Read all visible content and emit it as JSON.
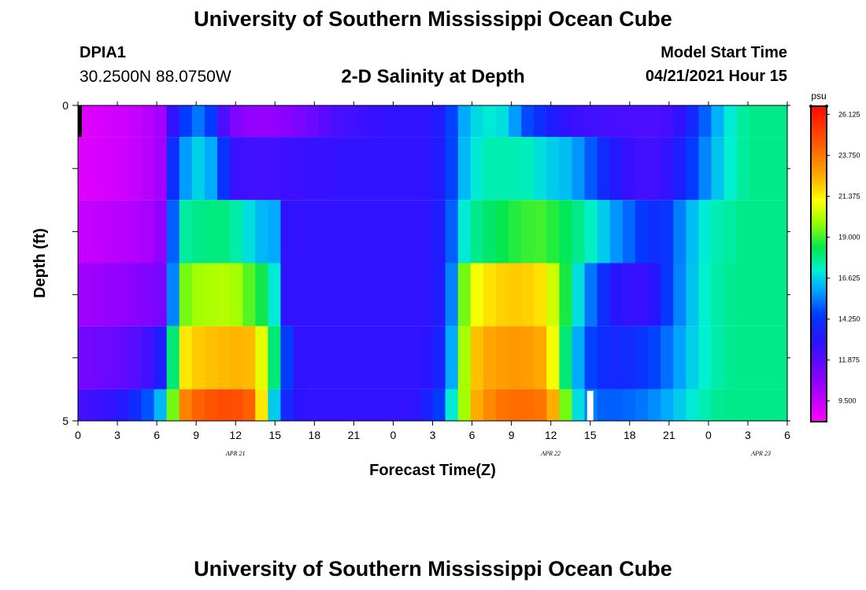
{
  "page": {
    "title_top": "University of Southern Mississippi Ocean Cube",
    "title_bottom": "University of Southern Mississippi Ocean Cube",
    "station_id": "DPIA1",
    "station_coords": "30.2500N  88.0750W",
    "subtitle": "2-D Salinity at Depth",
    "model_start_label": "Model Start Time",
    "model_start_value": "04/21/2021 Hour 15"
  },
  "chart_data": {
    "type": "heatmap",
    "title": "2-D Salinity at Depth",
    "xlabel": "Forecast Time(Z)",
    "ylabel": "Depth (ft)",
    "x_tick_labels": [
      "0",
      "3",
      "6",
      "9",
      "12",
      "15",
      "18",
      "21",
      "0",
      "3",
      "6",
      "9",
      "12",
      "15",
      "18",
      "21",
      "0",
      "3",
      "6"
    ],
    "y_range": [
      0,
      5
    ],
    "y_tick_labels": [
      "0",
      "5"
    ],
    "date_labels": [
      {
        "label": "APR  21",
        "hour": 12
      },
      {
        "label": "APR  22",
        "hour": 36
      },
      {
        "label": "APR  23",
        "hour": 52
      }
    ],
    "current_time_marker_hour": 39,
    "color_min": 8.3,
    "color_max": 26.6,
    "colorbar": {
      "unit": "psu",
      "ticks": [
        "26.125",
        "23.750",
        "21.375",
        "19.000",
        "16.625",
        "14.250",
        "11.875",
        "9.500"
      ]
    },
    "depth_levels": [
      {
        "depth_from": 0,
        "depth_to": 0.5,
        "values_every_2h": [
          9.0,
          9.1,
          9.2,
          9.3,
          9.5,
          9.8,
          10.2,
          12.8,
          14.5,
          15.3,
          14.5,
          12.2,
          11.0,
          10.6,
          10.5,
          10.6,
          10.8,
          11.1,
          11.5,
          11.9,
          12.3,
          12.5,
          12.6,
          12.7,
          12.8,
          12.8,
          12.8,
          12.9,
          13.3,
          14.6,
          16.0,
          16.7,
          17.0,
          16.8,
          15.8,
          14.7,
          14.0,
          13.4,
          12.9,
          12.6,
          12.5,
          12.4,
          12.3,
          12.3,
          12.2,
          12.2,
          12.4,
          12.9,
          13.8,
          15.0,
          16.1,
          17.0,
          17.6,
          17.8,
          17.8,
          17.8
        ]
      },
      {
        "depth_from": 0.5,
        "depth_to": 1.5,
        "values_every_2h": [
          9.0,
          9.1,
          9.2,
          9.3,
          9.5,
          9.8,
          10.2,
          14.0,
          15.8,
          16.6,
          16.0,
          14.2,
          12.6,
          12.5,
          12.5,
          12.5,
          12.6,
          12.6,
          12.7,
          12.7,
          12.8,
          12.8,
          12.8,
          12.8,
          12.8,
          12.8,
          12.8,
          12.9,
          13.3,
          14.6,
          16.2,
          17.0,
          17.4,
          17.4,
          17.4,
          17.3,
          16.8,
          16.5,
          16.3,
          15.7,
          14.9,
          13.9,
          13.2,
          12.7,
          12.5,
          12.5,
          12.8,
          13.5,
          14.5,
          15.5,
          16.4,
          17.1,
          17.6,
          17.8,
          17.8,
          17.8
        ]
      },
      {
        "depth_from": 1.5,
        "depth_to": 2.5,
        "values_every_2h": [
          9.5,
          9.6,
          9.7,
          9.8,
          9.9,
          10.1,
          10.6,
          15.0,
          17.6,
          17.8,
          17.9,
          17.9,
          17.5,
          16.8,
          16.2,
          16.0,
          12.9,
          12.8,
          12.8,
          12.8,
          12.8,
          12.8,
          12.8,
          12.8,
          12.8,
          12.8,
          12.8,
          12.9,
          13.4,
          15.0,
          17.0,
          17.8,
          18.1,
          18.4,
          18.7,
          18.9,
          19.0,
          18.7,
          18.3,
          17.8,
          17.2,
          16.5,
          15.7,
          15.1,
          14.4,
          14.0,
          14.3,
          15.4,
          16.3,
          17.0,
          17.4,
          17.6,
          17.8,
          17.8,
          17.8,
          17.8
        ]
      },
      {
        "depth_from": 2.5,
        "depth_to": 3.5,
        "values_every_2h": [
          10.3,
          10.4,
          10.5,
          10.6,
          10.8,
          11.0,
          11.2,
          15.5,
          19.5,
          20.0,
          20.1,
          20.2,
          20.0,
          19.2,
          18.5,
          17.0,
          12.9,
          12.8,
          12.8,
          12.8,
          12.8,
          12.8,
          12.8,
          12.8,
          12.8,
          12.8,
          12.8,
          12.9,
          13.4,
          15.5,
          19.5,
          21.0,
          21.6,
          21.9,
          22.0,
          21.9,
          21.6,
          20.5,
          18.6,
          16.8,
          15.3,
          14.0,
          13.1,
          12.8,
          12.7,
          13.1,
          14.3,
          15.5,
          16.4,
          17.1,
          17.5,
          17.7,
          17.8,
          17.8,
          17.8,
          17.8
        ]
      },
      {
        "depth_from": 3.5,
        "depth_to": 4.5,
        "values_every_2h": [
          11.3,
          11.4,
          11.5,
          11.7,
          12.0,
          12.5,
          13.4,
          18.0,
          21.5,
          22.0,
          22.2,
          22.3,
          22.4,
          22.3,
          20.8,
          18.0,
          14.5,
          12.9,
          12.8,
          12.8,
          12.8,
          12.8,
          12.8,
          12.8,
          12.8,
          12.8,
          12.8,
          13.0,
          13.6,
          16.0,
          20.0,
          22.2,
          22.7,
          22.9,
          23.0,
          22.9,
          22.6,
          21.0,
          18.0,
          16.0,
          14.6,
          14.0,
          13.8,
          13.9,
          14.2,
          14.6,
          15.2,
          15.9,
          16.6,
          17.1,
          17.5,
          17.7,
          17.8,
          17.8,
          17.8,
          17.8
        ]
      },
      {
        "depth_from": 4.5,
        "depth_to": 5,
        "values_every_2h": [
          12.4,
          12.6,
          12.8,
          13.2,
          13.9,
          14.8,
          16.2,
          19.5,
          23.5,
          24.2,
          24.6,
          24.8,
          24.7,
          24.3,
          21.5,
          16.5,
          13.8,
          13.0,
          12.8,
          12.8,
          12.8,
          12.8,
          12.8,
          12.8,
          12.8,
          12.8,
          12.9,
          13.5,
          14.5,
          17.0,
          20.0,
          22.5,
          23.3,
          23.8,
          24.0,
          24.0,
          23.8,
          22.5,
          19.5,
          16.8,
          15.4,
          15.0,
          15.0,
          15.1,
          15.3,
          15.6,
          16.0,
          16.5,
          17.0,
          17.4,
          17.7,
          17.8,
          17.8,
          17.8,
          17.8,
          17.8
        ]
      }
    ]
  }
}
